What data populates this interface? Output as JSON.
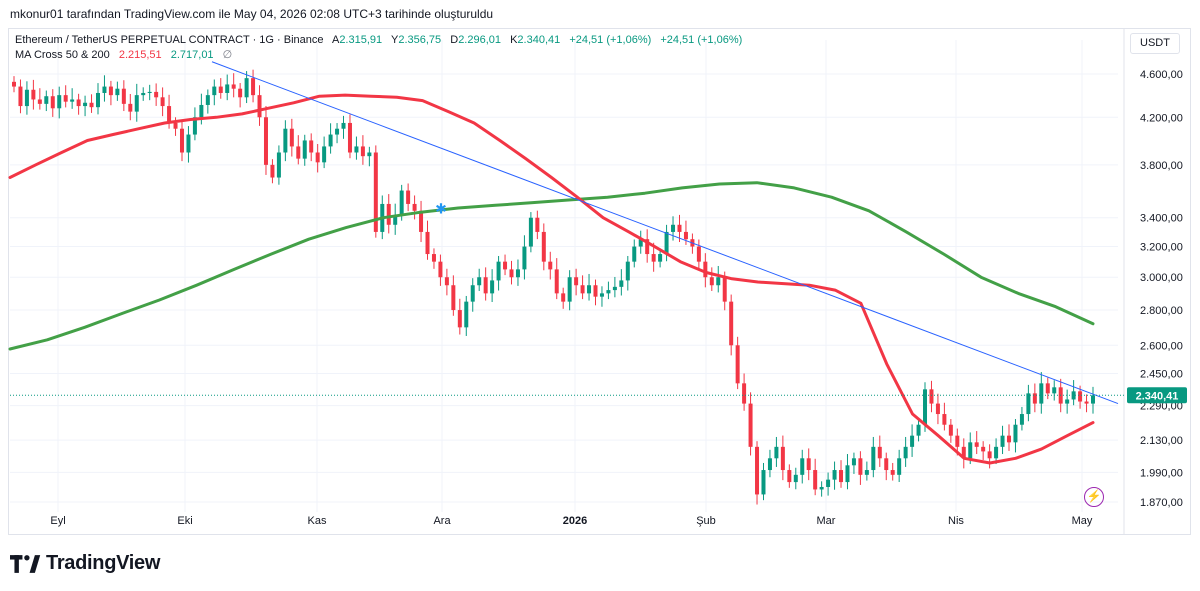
{
  "caption": "mkonur01 tarafından TradingView.com ile May 04, 2026 02:08 UTC+3 tarihinde oluşturuldu",
  "legend": {
    "symbol": "Ethereum / TetherUS PERPETUAL CONTRACT · 1G · Binance",
    "o_label": "A",
    "o_value": "2.315,91",
    "h_label": "Y",
    "h_value": "2.356,75",
    "l_label": "D",
    "l_value": "2.296,01",
    "c_label": "K",
    "c_value": "2.340,41",
    "change1": "+24,51 (+1,06%)",
    "change2": "+24,51 (+1,06%)",
    "ma_name": "MA Cross 50 & 200",
    "ma50_value": "2.215,51",
    "ma200_value": "2.717,01",
    "ma_icon": "∅"
  },
  "currency": "USDT",
  "brand": "TradingView",
  "flash_icon": "⚡",
  "chart_data": {
    "type": "candlestick",
    "y_axis_labels": [
      "4.600,00",
      "4.200,00",
      "3.800,00",
      "3.400,00",
      "3.200,00",
      "3.000,00",
      "2.800,00",
      "2.600,00",
      "2.450,00",
      "2.290,00",
      "2.130,00",
      "1.990,00",
      "1.870,00"
    ],
    "y_axis_values": [
      4600,
      4200,
      3800,
      3400,
      3200,
      3000,
      2800,
      2600,
      2450,
      2290,
      2130,
      1990,
      1870
    ],
    "y_scale": "log",
    "x_axis_labels": [
      "Eyl",
      "Eki",
      "Kas",
      "Ara",
      "2026",
      "Şub",
      "Mar",
      "Nis",
      "May"
    ],
    "last_price_label": "2.340,41",
    "last_price": 2340.41,
    "colors": {
      "up": "#089981",
      "down": "#f23645",
      "ma50": "#f23645",
      "ma200": "#43a047",
      "trendline": "#2962ff",
      "grid": "#f0f3fa"
    },
    "closes": [
      4480,
      4300,
      4450,
      4360,
      4320,
      4390,
      4280,
      4400,
      4340,
      4360,
      4300,
      4330,
      4290,
      4420,
      4480,
      4400,
      4460,
      4320,
      4250,
      4400,
      4420,
      4430,
      4380,
      4300,
      4150,
      4100,
      3900,
      4050,
      4200,
      4310,
      4400,
      4480,
      4420,
      4500,
      4460,
      4380,
      4560,
      4400,
      4200,
      3800,
      3700,
      3900,
      4100,
      3950,
      3850,
      4000,
      3900,
      3820,
      3950,
      4050,
      4100,
      4150,
      3900,
      3950,
      3870,
      3900,
      3300,
      3500,
      3350,
      3420,
      3600,
      3500,
      3450,
      3300,
      3150,
      3100,
      3000,
      2950,
      2800,
      2700,
      2850,
      2950,
      3000,
      2900,
      2980,
      3100,
      3050,
      3000,
      3050,
      3200,
      3400,
      3300,
      3100,
      3050,
      2900,
      2850,
      3000,
      2950,
      2900,
      2950,
      2880,
      2900,
      2920,
      2940,
      2980,
      3100,
      3200,
      3250,
      3150,
      3100,
      3150,
      3300,
      3350,
      3300,
      3250,
      3200,
      3100,
      3000,
      2950,
      3000,
      2850,
      2600,
      2400,
      2300,
      2100,
      1900,
      2000,
      2050,
      2100,
      2000,
      1950,
      1980,
      2050,
      2000,
      1920,
      1930,
      1960,
      2000,
      1950,
      2020,
      2050,
      1980,
      2000,
      2100,
      2050,
      2000,
      1980,
      2050,
      2100,
      2150,
      2200,
      2370,
      2300,
      2250,
      2200,
      2150,
      2100,
      2050,
      2120,
      2100,
      2080,
      2050,
      2100,
      2150,
      2120,
      2200,
      2250,
      2350,
      2300,
      2400,
      2350,
      2380,
      2300,
      2320,
      2360,
      2310,
      2300,
      2340
    ],
    "ma50": [
      3700,
      3800,
      3900,
      4000,
      4050,
      4100,
      4150,
      4180,
      4200,
      4230,
      4280,
      4330,
      4390,
      4400,
      4390,
      4380,
      4350,
      4250,
      4150,
      4000,
      3850,
      3700,
      3550,
      3400,
      3300,
      3200,
      3100,
      3030,
      2990,
      2970,
      2960,
      2950,
      2920,
      2840,
      2500,
      2250,
      2150,
      2050,
      2030,
      2050,
      2090,
      2150,
      2210
    ],
    "ma200": [
      2580,
      2630,
      2700,
      2780,
      2860,
      2950,
      3050,
      3150,
      3250,
      3330,
      3400,
      3440,
      3470,
      3490,
      3510,
      3530,
      3550,
      3580,
      3620,
      3650,
      3660,
      3620,
      3550,
      3450,
      3300,
      3150,
      3000,
      2900,
      2820,
      2720
    ],
    "trendline": {
      "start": [
        4720,
        0
      ],
      "end": [
        2340,
        1
      ]
    }
  }
}
